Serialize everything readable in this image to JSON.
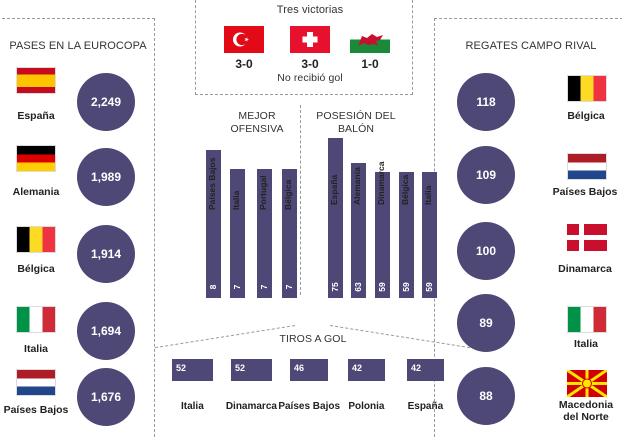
{
  "top": {
    "title": "Tres victorias",
    "scores": [
      "3-0",
      "3-0",
      "1-0"
    ],
    "subtitle": "No recibió gol",
    "flags": [
      "turkey",
      "switzerland",
      "wales"
    ]
  },
  "colors": {
    "accent": "#4d4876",
    "dash": "#9a9a9a"
  },
  "chart_data": [
    {
      "type": "table",
      "title": "PASES EN LA EUROCOPA",
      "categories": [
        "España",
        "Alemania",
        "Bélgica",
        "Italia",
        "Países Bajos"
      ],
      "values": [
        "2,249",
        "1,989",
        "1,914",
        "1,694",
        "1,676"
      ],
      "flags": [
        "spain",
        "germany",
        "belgium",
        "italy",
        "netherlands"
      ]
    },
    {
      "type": "bar",
      "title": "MEJOR OFENSIVA",
      "categories": [
        "Países Bajos",
        "Italia",
        "Portugal",
        "Bélgica"
      ],
      "values": [
        8,
        7,
        7,
        7
      ],
      "ylim": [
        0,
        9
      ]
    },
    {
      "type": "bar",
      "title": "POSESIÓN DEL BALÓN",
      "categories": [
        "España",
        "Alemania",
        "Dinamarca",
        "Bélgica",
        "Italia"
      ],
      "values": [
        75,
        63,
        59,
        59,
        59
      ],
      "ylim": [
        0,
        85
      ]
    },
    {
      "type": "bar",
      "title": "TIROS A GOL",
      "categories": [
        "Italia",
        "Dinamarca",
        "Países Bajos",
        "Polonia",
        "España"
      ],
      "values": [
        52,
        52,
        46,
        42,
        42
      ],
      "ylim": [
        0,
        60
      ]
    },
    {
      "type": "table",
      "title": "REGATES CAMPO RIVAL",
      "categories": [
        "Bélgica",
        "Países Bajos",
        "Dinamarca",
        "Italia",
        "Macedonia del Norte"
      ],
      "values": [
        118,
        109,
        100,
        89,
        88
      ],
      "flags": [
        "belgium",
        "netherlands",
        "denmark",
        "italy",
        "north-macedonia"
      ]
    }
  ]
}
